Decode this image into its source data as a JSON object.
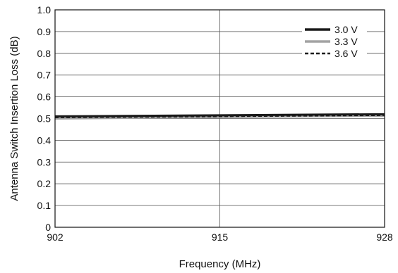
{
  "chart_data": {
    "type": "line",
    "title": "",
    "xlabel": "Frequency (MHz)",
    "ylabel": "Antenna Switch Insertion Loss (dB)",
    "xlim": [
      902,
      928
    ],
    "ylim": [
      0,
      1.0
    ],
    "x_ticks": [
      "902",
      "915",
      "928"
    ],
    "y_ticks": [
      "0",
      "0.1",
      "0.2",
      "0.3",
      "0.4",
      "0.5",
      "0.6",
      "0.7",
      "0.8",
      "0.9",
      "1.0"
    ],
    "grid": true,
    "legend_position": "top-right",
    "series": [
      {
        "name": "3.0 V",
        "color": "#1a1a1a",
        "style": "solid",
        "x": [
          902,
          915,
          928
        ],
        "y": [
          0.51,
          0.515,
          0.52
        ]
      },
      {
        "name": "3.3 V",
        "color": "#a3a3a3",
        "style": "solid",
        "x": [
          902,
          915,
          928
        ],
        "y": [
          0.5,
          0.507,
          0.513
        ]
      },
      {
        "name": "3.6 V",
        "color": "#1a1a1a",
        "style": "dashed",
        "x": [
          902,
          915,
          928
        ],
        "y": [
          0.505,
          0.51,
          0.515
        ]
      }
    ]
  }
}
